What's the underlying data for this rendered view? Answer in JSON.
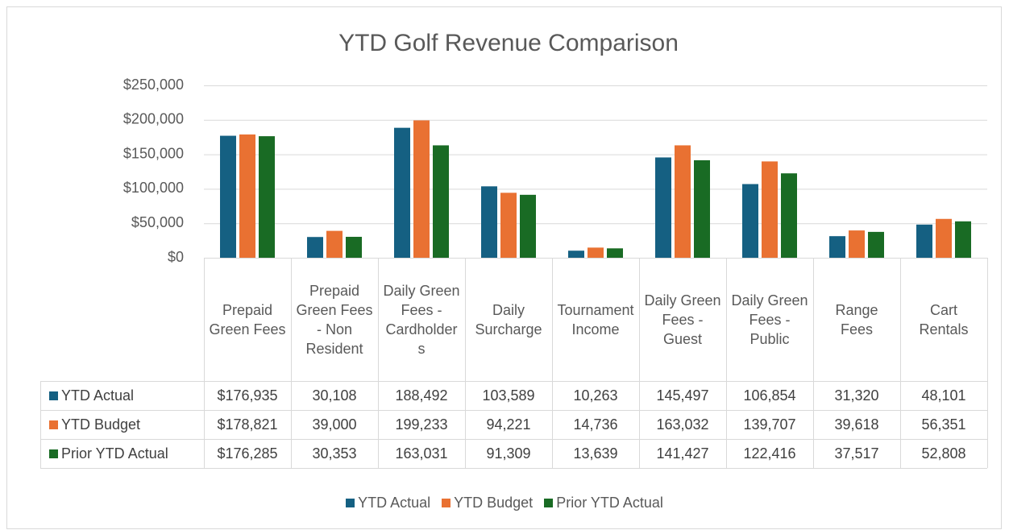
{
  "chart_data": {
    "type": "bar",
    "title": "YTD Golf Revenue Comparison",
    "categories": [
      "Prepaid Green Fees",
      "Prepaid Green Fees - Non Resident",
      "Daily Green Fees - Cardholders",
      "Daily Surcharge",
      "Tournament Income",
      "Daily Green Fees - Guest",
      "Daily Green Fees - Public",
      "Range Fees",
      "Cart Rentals"
    ],
    "series": [
      {
        "name": "YTD Actual",
        "color": "#156082",
        "values": [
          176935,
          30108,
          188492,
          103589,
          10263,
          145497,
          106854,
          31320,
          48101
        ],
        "value_labels": [
          "$176,935",
          "30,108",
          "188,492",
          "103,589",
          "10,263",
          "145,497",
          "106,854",
          "31,320",
          "48,101"
        ]
      },
      {
        "name": "YTD Budget",
        "color": "#e97132",
        "values": [
          178821,
          39000,
          199233,
          94221,
          14736,
          163032,
          139707,
          39618,
          56351
        ],
        "value_labels": [
          "$178,821",
          "39,000",
          "199,233",
          "94,221",
          "14,736",
          "163,032",
          "139,707",
          "39,618",
          "56,351"
        ]
      },
      {
        "name": "Prior YTD Actual",
        "color": "#196b24",
        "values": [
          176285,
          30353,
          163031,
          91309,
          13639,
          141427,
          122416,
          37517,
          52808
        ],
        "value_labels": [
          "$176,285",
          "30,353",
          "163,031",
          "91,309",
          "13,639",
          "141,427",
          "122,416",
          "37,517",
          "52,808"
        ]
      }
    ],
    "ylim": [
      0,
      250000
    ],
    "yticks": [
      {
        "value": 0,
        "label": "$0"
      },
      {
        "value": 50000,
        "label": "$50,000"
      },
      {
        "value": 100000,
        "label": "$100,000"
      },
      {
        "value": 150000,
        "label": "$150,000"
      },
      {
        "value": 200000,
        "label": "$200,000"
      },
      {
        "value": 250000,
        "label": "$250,000"
      }
    ],
    "grid": true,
    "legend": "bottom"
  }
}
